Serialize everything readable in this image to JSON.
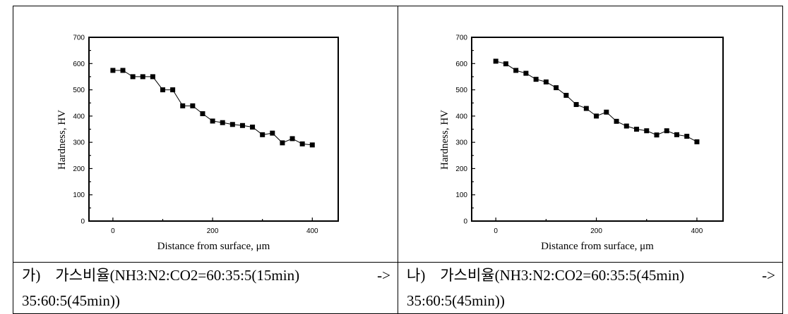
{
  "chart_data": [
    {
      "type": "line",
      "xlabel": "Distance from surface, μm",
      "ylabel": "Hardness, HV",
      "xlim": [
        -48,
        452
      ],
      "ylim": [
        0,
        700
      ],
      "xticks": [
        0,
        200,
        400
      ],
      "yticks": [
        0,
        100,
        200,
        300,
        400,
        500,
        600,
        700
      ],
      "grid": false,
      "marker": "square",
      "color": "#000000",
      "x": [
        0,
        20,
        40,
        60,
        80,
        100,
        120,
        140,
        160,
        180,
        200,
        220,
        240,
        260,
        280,
        300,
        320,
        340,
        360,
        380,
        400
      ],
      "y": [
        574,
        574,
        550,
        550,
        550,
        500,
        500,
        439,
        439,
        409,
        381,
        375,
        368,
        364,
        358,
        329,
        335,
        298,
        314,
        294,
        290
      ],
      "caption": {
        "line1_left": "가)　가스비율(NH3:N2:CO2=60:35:5(15min)",
        "line1_right": "->",
        "line2": "35:60:5(45min))"
      }
    },
    {
      "type": "line",
      "xlabel": "Distance from surface, μm",
      "ylabel": "Hardness, HV",
      "xlim": [
        -48,
        452
      ],
      "ylim": [
        0,
        700
      ],
      "xticks": [
        0,
        200,
        400
      ],
      "yticks": [
        0,
        100,
        200,
        300,
        400,
        500,
        600,
        700
      ],
      "grid": false,
      "marker": "square",
      "color": "#000000",
      "x": [
        0,
        20,
        40,
        60,
        80,
        100,
        120,
        140,
        160,
        180,
        200,
        220,
        240,
        260,
        280,
        300,
        320,
        340,
        360,
        380,
        400
      ],
      "y": [
        609,
        599,
        574,
        563,
        540,
        530,
        508,
        479,
        444,
        429,
        400,
        415,
        380,
        362,
        350,
        344,
        328,
        344,
        329,
        323,
        302
      ],
      "caption": {
        "line1_left": "나)　가스비율(NH3:N2:CO2=60:35:5(45min)",
        "line1_right": "->",
        "line2": "35:60:5(45min))"
      }
    }
  ]
}
